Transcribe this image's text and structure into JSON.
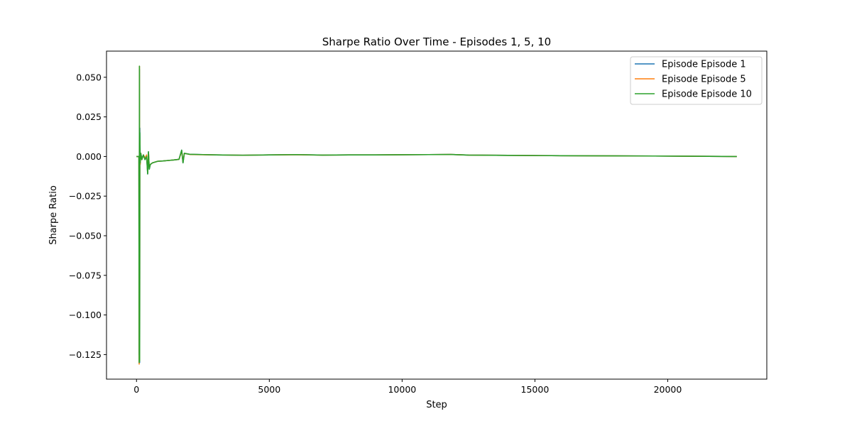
{
  "chart_data": {
    "type": "line",
    "title": "Sharpe Ratio Over Time - Episodes 1, 5, 10",
    "xlabel": "Step",
    "ylabel": "Sharpe Ratio",
    "xlim": [
      -1130,
      23730
    ],
    "ylim": [
      -0.1405,
      0.0665
    ],
    "xticks": [
      0,
      5000,
      10000,
      15000,
      20000
    ],
    "xtick_labels": [
      "0",
      "5000",
      "10000",
      "15000",
      "20000"
    ],
    "yticks": [
      0.05,
      0.025,
      0.0,
      -0.025,
      -0.05,
      -0.075,
      -0.1,
      -0.125
    ],
    "ytick_labels": [
      "0.050",
      "0.025",
      "0.000",
      "−0.025",
      "−0.050",
      "−0.075",
      "−0.100",
      "−0.125"
    ],
    "grid": false,
    "legend_position": "top-right",
    "series": [
      {
        "name": "Episode Episode 1",
        "color": "#1f77b4",
        "x": [
          0,
          60,
          90,
          100,
          110,
          118,
          125,
          140,
          160,
          200,
          260,
          320,
          380,
          420,
          450,
          480,
          520,
          600,
          800,
          1000,
          1200,
          1400,
          1600,
          1700,
          1750,
          1800,
          2000,
          2500,
          3000,
          4000,
          5000,
          6000,
          7000,
          8000,
          9000,
          10000,
          11000,
          11800,
          12500,
          14000,
          16000,
          18000,
          19500,
          20500,
          22600
        ],
        "y": [
          0.0,
          0.0,
          0.0,
          -0.125,
          0.055,
          -0.13,
          0.018,
          -0.004,
          0.002,
          -0.001,
          0.001,
          -0.002,
          0.0,
          -0.011,
          0.003,
          -0.008,
          -0.005,
          -0.004,
          -0.003,
          -0.0028,
          -0.0025,
          -0.0022,
          -0.0018,
          0.004,
          -0.004,
          0.002,
          0.0014,
          0.0012,
          0.001,
          0.0008,
          0.001,
          0.0012,
          0.0009,
          0.001,
          0.001,
          0.0011,
          0.0012,
          0.0013,
          0.0009,
          0.0007,
          0.0005,
          0.0004,
          0.0003,
          0.0002,
          0.0
        ]
      },
      {
        "name": "Episode Episode 5",
        "color": "#ff7f0e",
        "x": [
          0,
          60,
          90,
          100,
          110,
          118,
          125,
          140,
          160,
          200,
          260,
          320,
          380,
          420,
          450,
          480,
          520,
          600,
          800,
          1000,
          1200,
          1400,
          1600,
          1700,
          1750,
          1800,
          2000,
          2500,
          3000,
          4000,
          5000,
          6000,
          7000,
          8000,
          9000,
          10000,
          11000,
          11800,
          12500,
          14000,
          16000,
          18000,
          19500,
          20500,
          22600
        ],
        "y": [
          0.0,
          0.0,
          0.0,
          -0.131,
          0.057,
          -0.128,
          0.01,
          -0.005,
          0.002,
          -0.002,
          0.001,
          -0.001,
          0.001,
          -0.01,
          0.002,
          -0.007,
          -0.005,
          -0.004,
          -0.003,
          -0.0028,
          -0.0025,
          -0.0022,
          -0.0018,
          0.0035,
          -0.0035,
          0.002,
          0.0013,
          0.0011,
          0.001,
          0.0008,
          0.001,
          0.0011,
          0.0009,
          0.001,
          0.001,
          0.0011,
          0.0012,
          0.0013,
          0.0009,
          0.0007,
          0.0005,
          0.0004,
          0.0003,
          0.0002,
          0.0
        ]
      },
      {
        "name": "Episode Episode 10",
        "color": "#2ca02c",
        "x": [
          0,
          60,
          90,
          100,
          110,
          118,
          125,
          140,
          160,
          200,
          260,
          320,
          380,
          420,
          450,
          480,
          520,
          600,
          800,
          1000,
          1200,
          1400,
          1600,
          1700,
          1750,
          1800,
          2000,
          2500,
          3000,
          4000,
          5000,
          6000,
          7000,
          8000,
          9000,
          10000,
          11000,
          11800,
          12500,
          14000,
          16000,
          18000,
          19500,
          20500,
          22600
        ],
        "y": [
          0.0,
          0.0,
          0.0,
          -0.13,
          0.057,
          -0.129,
          0.015,
          -0.004,
          0.002,
          -0.002,
          0.001,
          -0.002,
          0.0,
          -0.011,
          0.003,
          -0.008,
          -0.005,
          -0.004,
          -0.003,
          -0.0028,
          -0.0025,
          -0.0022,
          -0.0018,
          0.004,
          -0.004,
          0.002,
          0.0014,
          0.0012,
          0.001,
          0.0008,
          0.001,
          0.0012,
          0.0009,
          0.001,
          0.001,
          0.0011,
          0.0012,
          0.0013,
          0.0009,
          0.0007,
          0.0005,
          0.0004,
          0.0003,
          0.0002,
          0.0
        ]
      }
    ]
  }
}
